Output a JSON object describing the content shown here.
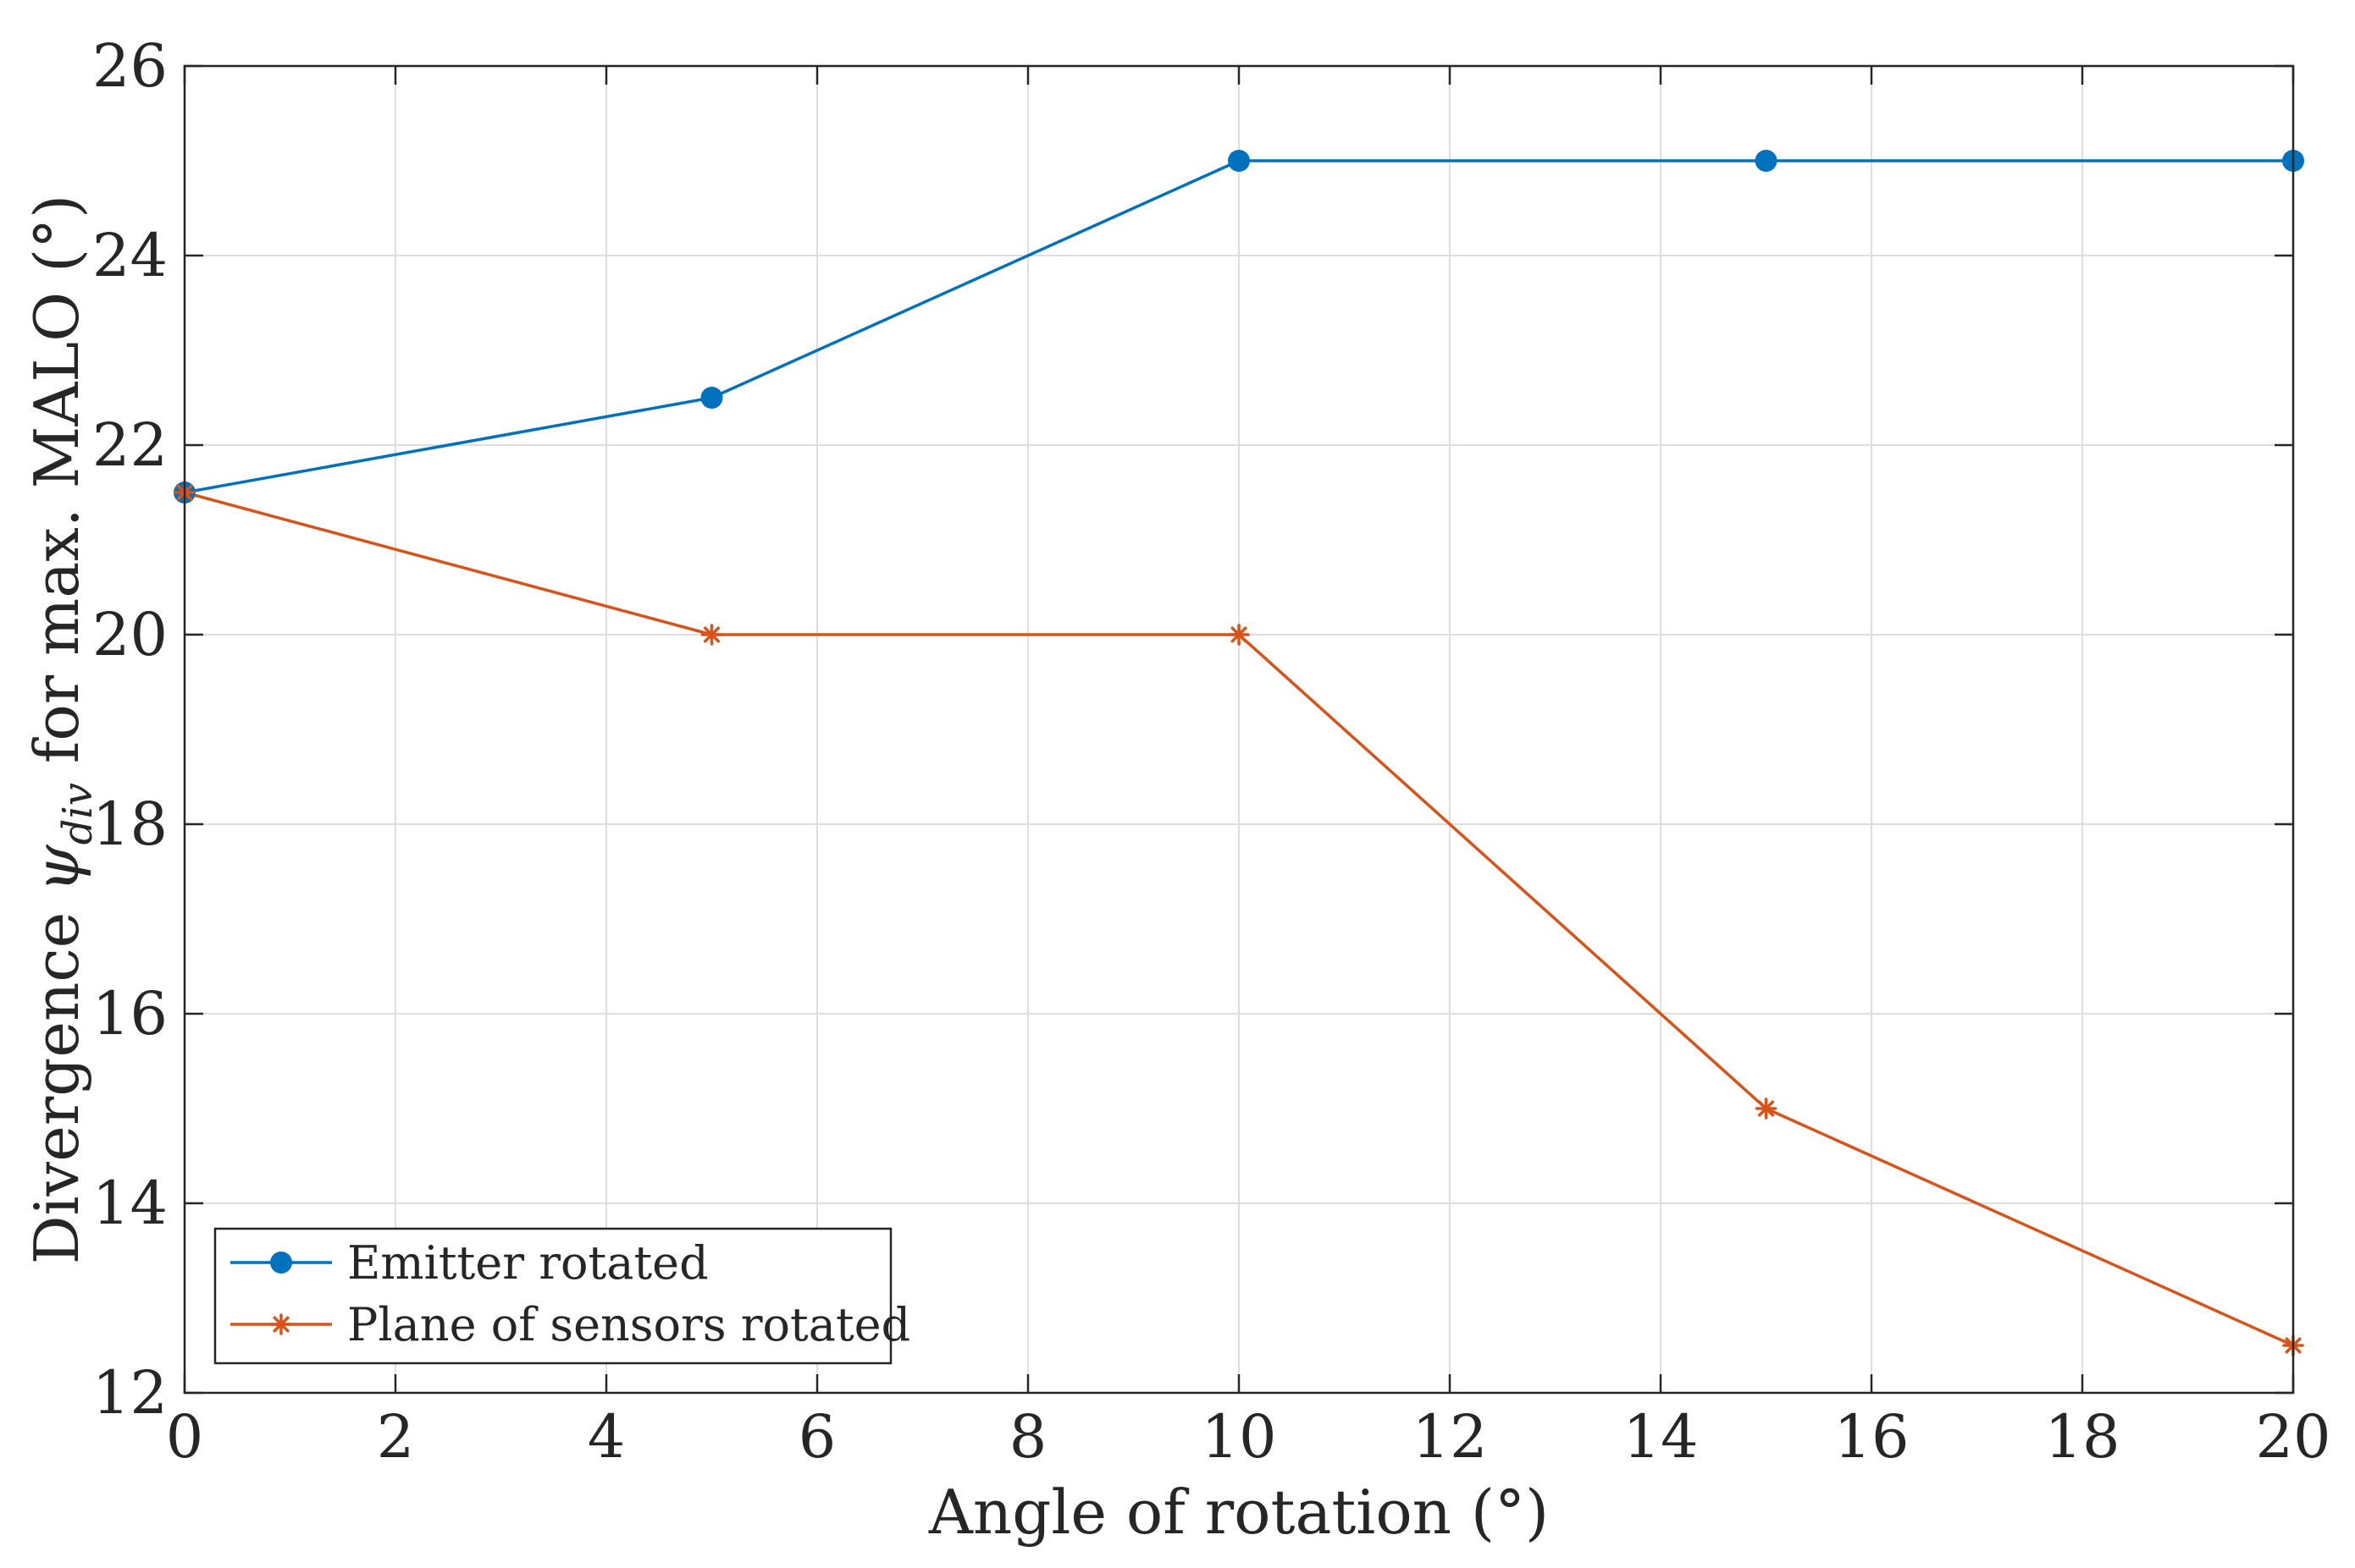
{
  "chart_data": {
    "type": "line",
    "title": "",
    "xlabel": "Angle of rotation (°)",
    "ylabel_prefix": "Divergence ",
    "ylabel_symbol": "ψ",
    "ylabel_subscript": "div",
    "ylabel_suffix": " for max. MALO (°)",
    "xlim": [
      0,
      20
    ],
    "ylim": [
      12,
      26
    ],
    "xticks": [
      0,
      2,
      4,
      6,
      8,
      10,
      12,
      14,
      16,
      18,
      20
    ],
    "yticks": [
      12,
      14,
      16,
      18,
      20,
      22,
      24,
      26
    ],
    "grid": true,
    "legend_position": "bottom-left",
    "x": [
      0,
      5,
      10,
      15,
      20
    ],
    "series": [
      {
        "name": "Emitter rotated",
        "values": [
          21.5,
          22.5,
          25,
          25,
          25
        ],
        "color": "#0072BD",
        "marker": "circle"
      },
      {
        "name": "Plane of sensors rotated",
        "values": [
          21.5,
          20,
          20,
          15,
          12.5
        ],
        "color": "#D95319",
        "marker": "asterisk"
      }
    ]
  }
}
